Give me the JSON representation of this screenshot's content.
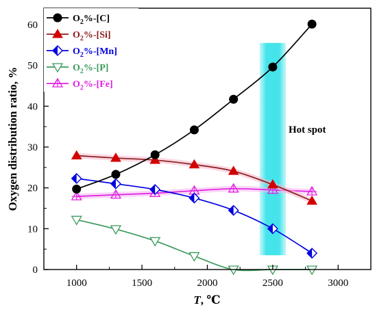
{
  "chart_data": {
    "type": "line",
    "title": "",
    "xlabel": "T, ℃",
    "xlabel_italic_part": "T",
    "xlabel_rest": ", ℃",
    "ylabel": "Oxygen distribution ratio, %",
    "xlim": [
      750,
      3250
    ],
    "ylim": [
      0,
      64
    ],
    "xticks": [
      1000,
      1500,
      2000,
      2500,
      3000
    ],
    "yticks": [
      0,
      10,
      20,
      30,
      40,
      50,
      60
    ],
    "x": [
      1000,
      1300,
      1600,
      1900,
      2200,
      2500,
      2800
    ],
    "grid": false,
    "legend_position": "top-left",
    "series": [
      {
        "name": "O2%-[C]",
        "label_main": "O",
        "label_sub": "2",
        "label_tail": "%-[C]",
        "color": "#000000",
        "marker": "circle-filled",
        "values": [
          19.7,
          23.3,
          28.1,
          34.2,
          41.7,
          49.6,
          60.1
        ]
      },
      {
        "name": "O2%-[Si]",
        "label_main": "O",
        "label_sub": "2",
        "label_tail": "%-[Si]",
        "color": "#8b1a1a",
        "marker_color": "#d40000",
        "marker": "triangle-filled",
        "values": [
          27.9,
          27.3,
          26.8,
          25.7,
          24.1,
          20.8,
          16.8
        ]
      },
      {
        "name": "O2%-[Mn]",
        "label_main": "O",
        "label_sub": "2",
        "label_tail": "%-[Mn]",
        "color": "#0000e0",
        "marker": "diamond-half",
        "values": [
          22.3,
          21.0,
          19.6,
          17.5,
          14.5,
          10.0,
          4.0
        ]
      },
      {
        "name": "O2%-[P]",
        "label_main": "O",
        "label_sub": "2",
        "label_tail": "%-[P]",
        "color": "#3a9a5b",
        "marker": "triangle-down-open",
        "values": [
          12.2,
          9.9,
          7.0,
          3.3,
          0.0,
          0.0,
          0.0
        ]
      },
      {
        "name": "O2%-[Fe]",
        "label_main": "O",
        "label_sub": "2",
        "label_tail": "%-[Fe]",
        "color": "#e020e0",
        "marker": "triangle-plus",
        "values": [
          17.9,
          18.3,
          18.7,
          19.3,
          19.8,
          19.5,
          19.1
        ]
      }
    ],
    "annotations": [
      {
        "text": "Hot spot",
        "x_range": [
          2400,
          2600
        ],
        "y_range": [
          3.5,
          55.5
        ],
        "color": "#3fe0e8"
      }
    ]
  }
}
